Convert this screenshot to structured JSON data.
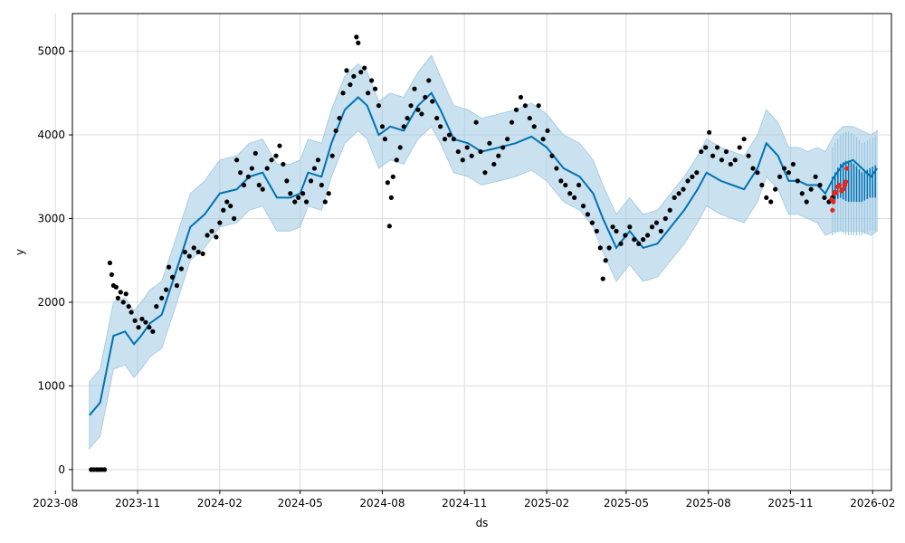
{
  "chart_data": {
    "type": "scatter",
    "title": "",
    "xlabel": "ds",
    "ylabel": "y",
    "grid": true,
    "x_range": [
      "2023-08-20",
      "2026-02-22"
    ],
    "y_range": [
      -250,
      5450
    ],
    "x_ticks": [
      "2023-08",
      "2023-11",
      "2024-02",
      "2024-05",
      "2024-08",
      "2024-11",
      "2025-02",
      "2025-05",
      "2025-08",
      "2025-11",
      "2026-02"
    ],
    "y_ticks": [
      0,
      1000,
      2000,
      3000,
      4000,
      5000
    ],
    "colors": {
      "observed": "#000000",
      "test": "#e8261f",
      "forecast": "#0072B2",
      "band": "#9ec8e1"
    },
    "forecast_line": {
      "x": [
        "2023-09-08",
        "2023-09-20",
        "2023-10-05",
        "2023-10-18",
        "2023-10-28",
        "2023-11-05",
        "2023-11-15",
        "2023-11-28",
        "2023-12-15",
        "2023-12-30",
        "2024-01-15",
        "2024-02-01",
        "2024-02-20",
        "2024-03-05",
        "2024-03-20",
        "2024-04-05",
        "2024-04-20",
        "2024-05-01",
        "2024-05-10",
        "2024-05-25",
        "2024-06-05",
        "2024-06-20",
        "2024-07-05",
        "2024-07-15",
        "2024-07-28",
        "2024-08-10",
        "2024-08-25",
        "2024-09-10",
        "2024-09-25",
        "2024-10-05",
        "2024-10-20",
        "2024-11-05",
        "2024-11-20",
        "2024-12-10",
        "2024-12-28",
        "2025-01-15",
        "2025-02-01",
        "2025-02-20",
        "2025-03-10",
        "2025-03-25",
        "2025-04-05",
        "2025-04-20",
        "2025-05-05",
        "2025-05-20",
        "2025-06-05",
        "2025-06-20",
        "2025-07-05",
        "2025-07-20",
        "2025-07-30",
        "2025-08-15",
        "2025-08-28",
        "2025-09-10",
        "2025-09-25",
        "2025-10-05",
        "2025-10-18",
        "2025-10-30",
        "2025-11-10",
        "2025-11-20",
        "2025-12-01",
        "2025-12-10",
        "2025-12-20",
        "2025-12-30",
        "2026-01-10",
        "2026-01-20",
        "2026-01-30",
        "2026-02-06"
      ],
      "y": [
        650,
        800,
        1600,
        1650,
        1500,
        1600,
        1750,
        1850,
        2400,
        2900,
        3050,
        3300,
        3350,
        3500,
        3550,
        3250,
        3250,
        3300,
        3550,
        3500,
        3900,
        4300,
        4450,
        4350,
        4000,
        4100,
        4050,
        4350,
        4500,
        4300,
        3950,
        3900,
        3800,
        3850,
        3900,
        3980,
        3850,
        3600,
        3500,
        3300,
        3000,
        2650,
        2850,
        2650,
        2700,
        2900,
        3100,
        3350,
        3550,
        3450,
        3400,
        3350,
        3600,
        3900,
        3750,
        3450,
        3450,
        3400,
        3400,
        3300,
        3500,
        3650,
        3700,
        3600,
        3500,
        3600
      ]
    },
    "band_upper": [
      1050,
      1200,
      2000,
      2050,
      1900,
      2000,
      2150,
      2250,
      2800,
      3300,
      3450,
      3700,
      3750,
      3900,
      3950,
      3650,
      3650,
      3700,
      3950,
      3900,
      4300,
      4700,
      4850,
      4750,
      4400,
      4500,
      4450,
      4750,
      4950,
      4700,
      4350,
      4300,
      4200,
      4250,
      4300,
      4380,
      4250,
      4000,
      3900,
      3700,
      3400,
      3050,
      3250,
      3050,
      3100,
      3300,
      3500,
      3750,
      3950,
      3850,
      3800,
      3750,
      4000,
      4300,
      4150,
      3850,
      3850,
      3800,
      3850,
      3800,
      4000,
      4100,
      4100,
      4050,
      4000,
      4050
    ],
    "band_lower": [
      250,
      400,
      1200,
      1250,
      1100,
      1200,
      1350,
      1450,
      2000,
      2500,
      2650,
      2900,
      2950,
      3100,
      3150,
      2850,
      2850,
      2900,
      3150,
      3100,
      3500,
      3900,
      4050,
      3950,
      3600,
      3700,
      3650,
      3950,
      4100,
      3900,
      3550,
      3500,
      3400,
      3450,
      3500,
      3580,
      3450,
      3200,
      3100,
      2900,
      2600,
      2250,
      2450,
      2250,
      2300,
      2500,
      2700,
      2950,
      3150,
      3050,
      3000,
      2950,
      3200,
      3500,
      3350,
      3050,
      3050,
      3000,
      2950,
      2800,
      2850,
      2850,
      2850,
      2850,
      2800,
      2850
    ],
    "forecast_oscillation": {
      "x_start": "2025-12-18",
      "x_end": "2026-02-06",
      "upper": [
        3500,
        3650,
        3700,
        3650,
        3550,
        3600,
        3650
      ],
      "lower": [
        3200,
        3250,
        3200,
        3200,
        3200,
        3250,
        3250
      ]
    },
    "observed": [
      {
        "x": "2023-09-10",
        "y": 0
      },
      {
        "x": "2023-09-13",
        "y": 0
      },
      {
        "x": "2023-09-16",
        "y": 0
      },
      {
        "x": "2023-09-19",
        "y": 0
      },
      {
        "x": "2023-09-22",
        "y": 0
      },
      {
        "x": "2023-09-25",
        "y": 0
      },
      {
        "x": "2023-10-01",
        "y": 2470
      },
      {
        "x": "2023-10-03",
        "y": 2330
      },
      {
        "x": "2023-10-05",
        "y": 2200
      },
      {
        "x": "2023-10-08",
        "y": 2180
      },
      {
        "x": "2023-10-10",
        "y": 2050
      },
      {
        "x": "2023-10-13",
        "y": 2120
      },
      {
        "x": "2023-10-16",
        "y": 2000
      },
      {
        "x": "2023-10-19",
        "y": 2100
      },
      {
        "x": "2023-10-22",
        "y": 1950
      },
      {
        "x": "2023-10-25",
        "y": 1880
      },
      {
        "x": "2023-10-29",
        "y": 1780
      },
      {
        "x": "2023-11-02",
        "y": 1700
      },
      {
        "x": "2023-11-06",
        "y": 1800
      },
      {
        "x": "2023-11-10",
        "y": 1760
      },
      {
        "x": "2023-11-14",
        "y": 1700
      },
      {
        "x": "2023-11-18",
        "y": 1650
      },
      {
        "x": "2023-11-22",
        "y": 1950
      },
      {
        "x": "2023-11-28",
        "y": 2050
      },
      {
        "x": "2023-12-03",
        "y": 2150
      },
      {
        "x": "2023-12-06",
        "y": 2420
      },
      {
        "x": "2023-12-10",
        "y": 2300
      },
      {
        "x": "2023-12-15",
        "y": 2200
      },
      {
        "x": "2023-12-20",
        "y": 2400
      },
      {
        "x": "2023-12-24",
        "y": 2600
      },
      {
        "x": "2023-12-29",
        "y": 2550
      },
      {
        "x": "2024-01-03",
        "y": 2650
      },
      {
        "x": "2024-01-08",
        "y": 2600
      },
      {
        "x": "2024-01-13",
        "y": 2580
      },
      {
        "x": "2024-01-18",
        "y": 2800
      },
      {
        "x": "2024-01-23",
        "y": 2850
      },
      {
        "x": "2024-01-28",
        "y": 2780
      },
      {
        "x": "2024-02-01",
        "y": 2950
      },
      {
        "x": "2024-02-05",
        "y": 3100
      },
      {
        "x": "2024-02-09",
        "y": 3200
      },
      {
        "x": "2024-02-13",
        "y": 3150
      },
      {
        "x": "2024-02-17",
        "y": 3000
      },
      {
        "x": "2024-02-20",
        "y": 3700
      },
      {
        "x": "2024-02-24",
        "y": 3550
      },
      {
        "x": "2024-02-28",
        "y": 3400
      },
      {
        "x": "2024-03-04",
        "y": 3500
      },
      {
        "x": "2024-03-08",
        "y": 3600
      },
      {
        "x": "2024-03-12",
        "y": 3780
      },
      {
        "x": "2024-03-16",
        "y": 3400
      },
      {
        "x": "2024-03-20",
        "y": 3350
      },
      {
        "x": "2024-03-25",
        "y": 3600
      },
      {
        "x": "2024-03-30",
        "y": 3700
      },
      {
        "x": "2024-04-04",
        "y": 3750
      },
      {
        "x": "2024-04-08",
        "y": 3870
      },
      {
        "x": "2024-04-12",
        "y": 3650
      },
      {
        "x": "2024-04-16",
        "y": 3450
      },
      {
        "x": "2024-04-20",
        "y": 3300
      },
      {
        "x": "2024-04-25",
        "y": 3200
      },
      {
        "x": "2024-04-29",
        "y": 3250
      },
      {
        "x": "2024-05-04",
        "y": 3300
      },
      {
        "x": "2024-05-08",
        "y": 3200
      },
      {
        "x": "2024-05-13",
        "y": 3450
      },
      {
        "x": "2024-05-17",
        "y": 3600
      },
      {
        "x": "2024-05-21",
        "y": 3700
      },
      {
        "x": "2024-05-25",
        "y": 3400
      },
      {
        "x": "2024-05-29",
        "y": 3200
      },
      {
        "x": "2024-06-02",
        "y": 3300
      },
      {
        "x": "2024-06-06",
        "y": 3750
      },
      {
        "x": "2024-06-10",
        "y": 4050
      },
      {
        "x": "2024-06-14",
        "y": 4200
      },
      {
        "x": "2024-06-18",
        "y": 4500
      },
      {
        "x": "2024-06-22",
        "y": 4770
      },
      {
        "x": "2024-06-26",
        "y": 4600
      },
      {
        "x": "2024-06-30",
        "y": 4700
      },
      {
        "x": "2024-07-03",
        "y": 5170
      },
      {
        "x": "2024-07-05",
        "y": 5100
      },
      {
        "x": "2024-07-08",
        "y": 4750
      },
      {
        "x": "2024-07-12",
        "y": 4800
      },
      {
        "x": "2024-07-16",
        "y": 4500
      },
      {
        "x": "2024-07-20",
        "y": 4650
      },
      {
        "x": "2024-07-24",
        "y": 4550
      },
      {
        "x": "2024-07-28",
        "y": 4350
      },
      {
        "x": "2024-08-01",
        "y": 4100
      },
      {
        "x": "2024-08-04",
        "y": 3950
      },
      {
        "x": "2024-08-07",
        "y": 3430
      },
      {
        "x": "2024-08-09",
        "y": 2910
      },
      {
        "x": "2024-08-11",
        "y": 3250
      },
      {
        "x": "2024-08-13",
        "y": 3500
      },
      {
        "x": "2024-08-17",
        "y": 3700
      },
      {
        "x": "2024-08-21",
        "y": 3850
      },
      {
        "x": "2024-08-25",
        "y": 4100
      },
      {
        "x": "2024-08-29",
        "y": 4200
      },
      {
        "x": "2024-09-02",
        "y": 4350
      },
      {
        "x": "2024-09-06",
        "y": 4550
      },
      {
        "x": "2024-09-10",
        "y": 4300
      },
      {
        "x": "2024-09-14",
        "y": 4250
      },
      {
        "x": "2024-09-18",
        "y": 4450
      },
      {
        "x": "2024-09-22",
        "y": 4650
      },
      {
        "x": "2024-09-26",
        "y": 4400
      },
      {
        "x": "2024-10-01",
        "y": 4200
      },
      {
        "x": "2024-10-05",
        "y": 4100
      },
      {
        "x": "2024-10-10",
        "y": 3950
      },
      {
        "x": "2024-10-15",
        "y": 4000
      },
      {
        "x": "2024-10-20",
        "y": 3950
      },
      {
        "x": "2024-10-25",
        "y": 3800
      },
      {
        "x": "2024-10-30",
        "y": 3700
      },
      {
        "x": "2024-11-04",
        "y": 3850
      },
      {
        "x": "2024-11-09",
        "y": 3750
      },
      {
        "x": "2024-11-14",
        "y": 4150
      },
      {
        "x": "2024-11-19",
        "y": 3800
      },
      {
        "x": "2024-11-24",
        "y": 3550
      },
      {
        "x": "2024-11-29",
        "y": 3900
      },
      {
        "x": "2024-12-04",
        "y": 3650
      },
      {
        "x": "2024-12-09",
        "y": 3750
      },
      {
        "x": "2024-12-14",
        "y": 3850
      },
      {
        "x": "2024-12-19",
        "y": 3950
      },
      {
        "x": "2024-12-24",
        "y": 4150
      },
      {
        "x": "2024-12-29",
        "y": 4300
      },
      {
        "x": "2025-01-03",
        "y": 4450
      },
      {
        "x": "2025-01-08",
        "y": 4350
      },
      {
        "x": "2025-01-13",
        "y": 4200
      },
      {
        "x": "2025-01-18",
        "y": 4100
      },
      {
        "x": "2025-01-23",
        "y": 4350
      },
      {
        "x": "2025-01-28",
        "y": 3950
      },
      {
        "x": "2025-02-02",
        "y": 4050
      },
      {
        "x": "2025-02-07",
        "y": 3750
      },
      {
        "x": "2025-02-12",
        "y": 3600
      },
      {
        "x": "2025-02-17",
        "y": 3450
      },
      {
        "x": "2025-02-22",
        "y": 3400
      },
      {
        "x": "2025-02-27",
        "y": 3300
      },
      {
        "x": "2025-03-04",
        "y": 3250
      },
      {
        "x": "2025-03-09",
        "y": 3400
      },
      {
        "x": "2025-03-14",
        "y": 3150
      },
      {
        "x": "2025-03-19",
        "y": 3050
      },
      {
        "x": "2025-03-24",
        "y": 2950
      },
      {
        "x": "2025-03-29",
        "y": 2850
      },
      {
        "x": "2025-04-02",
        "y": 2650
      },
      {
        "x": "2025-04-05",
        "y": 2280
      },
      {
        "x": "2025-04-08",
        "y": 2500
      },
      {
        "x": "2025-04-12",
        "y": 2650
      },
      {
        "x": "2025-04-16",
        "y": 2900
      },
      {
        "x": "2025-04-20",
        "y": 2850
      },
      {
        "x": "2025-04-25",
        "y": 2700
      },
      {
        "x": "2025-04-30",
        "y": 2800
      },
      {
        "x": "2025-05-05",
        "y": 2900
      },
      {
        "x": "2025-05-10",
        "y": 2750
      },
      {
        "x": "2025-05-15",
        "y": 2700
      },
      {
        "x": "2025-05-20",
        "y": 2750
      },
      {
        "x": "2025-05-25",
        "y": 2800
      },
      {
        "x": "2025-05-30",
        "y": 2900
      },
      {
        "x": "2025-06-04",
        "y": 2950
      },
      {
        "x": "2025-06-09",
        "y": 2850
      },
      {
        "x": "2025-06-14",
        "y": 3000
      },
      {
        "x": "2025-06-19",
        "y": 3100
      },
      {
        "x": "2025-06-24",
        "y": 3250
      },
      {
        "x": "2025-06-29",
        "y": 3300
      },
      {
        "x": "2025-07-04",
        "y": 3350
      },
      {
        "x": "2025-07-09",
        "y": 3450
      },
      {
        "x": "2025-07-14",
        "y": 3500
      },
      {
        "x": "2025-07-19",
        "y": 3550
      },
      {
        "x": "2025-07-24",
        "y": 3800
      },
      {
        "x": "2025-07-29",
        "y": 3850
      },
      {
        "x": "2025-08-02",
        "y": 4030
      },
      {
        "x": "2025-08-06",
        "y": 3750
      },
      {
        "x": "2025-08-11",
        "y": 3850
      },
      {
        "x": "2025-08-16",
        "y": 3700
      },
      {
        "x": "2025-08-21",
        "y": 3800
      },
      {
        "x": "2025-08-26",
        "y": 3650
      },
      {
        "x": "2025-08-31",
        "y": 3700
      },
      {
        "x": "2025-09-05",
        "y": 3850
      },
      {
        "x": "2025-09-10",
        "y": 3950
      },
      {
        "x": "2025-09-15",
        "y": 3750
      },
      {
        "x": "2025-09-20",
        "y": 3600
      },
      {
        "x": "2025-09-25",
        "y": 3550
      },
      {
        "x": "2025-09-30",
        "y": 3400
      },
      {
        "x": "2025-10-05",
        "y": 3250
      },
      {
        "x": "2025-10-10",
        "y": 3200
      },
      {
        "x": "2025-10-15",
        "y": 3350
      },
      {
        "x": "2025-10-20",
        "y": 3500
      },
      {
        "x": "2025-10-25",
        "y": 3600
      },
      {
        "x": "2025-10-30",
        "y": 3550
      },
      {
        "x": "2025-11-04",
        "y": 3650
      },
      {
        "x": "2025-11-09",
        "y": 3450
      },
      {
        "x": "2025-11-14",
        "y": 3300
      },
      {
        "x": "2025-11-19",
        "y": 3200
      },
      {
        "x": "2025-11-24",
        "y": 3350
      },
      {
        "x": "2025-11-29",
        "y": 3500
      },
      {
        "x": "2025-12-04",
        "y": 3400
      },
      {
        "x": "2025-12-09",
        "y": 3250
      },
      {
        "x": "2025-12-14",
        "y": 3200
      },
      {
        "x": "2025-12-18",
        "y": 3250
      }
    ],
    "test_points": [
      {
        "x": "2025-12-17",
        "y": 3230
      },
      {
        "x": "2025-12-18",
        "y": 3100
      },
      {
        "x": "2025-12-19",
        "y": 3200
      },
      {
        "x": "2025-12-20",
        "y": 3300
      },
      {
        "x": "2025-12-21",
        "y": 3320
      },
      {
        "x": "2025-12-22",
        "y": 3310
      },
      {
        "x": "2025-12-24",
        "y": 3380
      },
      {
        "x": "2025-12-26",
        "y": 3400
      },
      {
        "x": "2025-12-28",
        "y": 3330
      },
      {
        "x": "2025-12-30",
        "y": 3350
      },
      {
        "x": "2026-01-01",
        "y": 3400
      },
      {
        "x": "2026-01-02",
        "y": 3440
      },
      {
        "x": "2026-01-03",
        "y": 3600
      }
    ]
  }
}
